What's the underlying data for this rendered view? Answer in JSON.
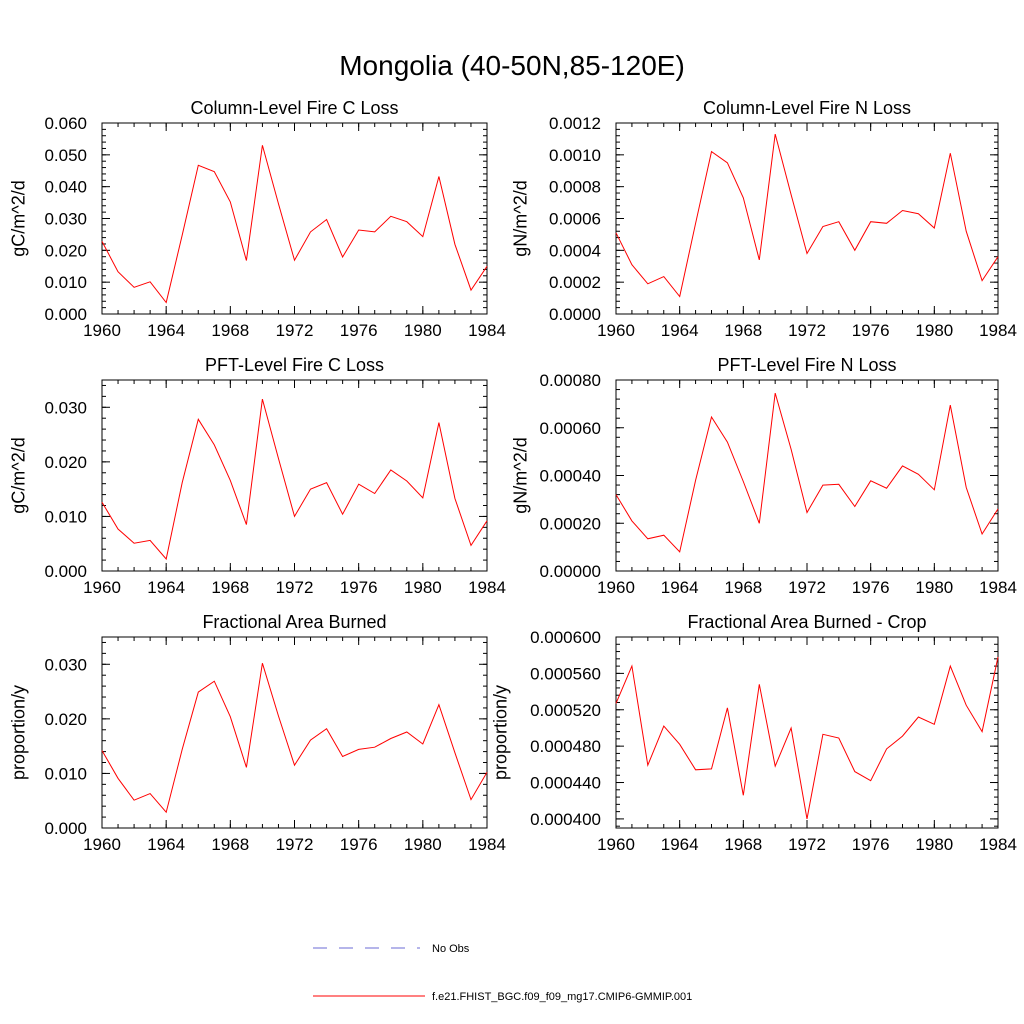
{
  "title": "Mongolia (40-50N,85-120E)",
  "colors": {
    "series": "#ff0000",
    "obs": "#6b6bd6",
    "axis": "#000000"
  },
  "legend": {
    "obs_label": "No Obs",
    "model_label": "f.e21.FHIST_BGC.f09_f09_mg17.CMIP6-GMMIP.001"
  },
  "chart_data": [
    {
      "type": "line",
      "title": "Column-Level Fire C Loss",
      "xlabel": "",
      "ylabel": "gC/m^2/d",
      "xlim": [
        1960,
        1984
      ],
      "ylim": [
        0,
        0.06
      ],
      "xticks": [
        1960,
        1964,
        1968,
        1972,
        1976,
        1980,
        1984
      ],
      "xtick_labels": [
        "1960",
        "1964",
        "1968",
        "1972",
        "1976",
        "1980",
        "1984"
      ],
      "yticks": [
        0,
        0.01,
        0.02,
        0.03,
        0.04,
        0.05,
        0.06
      ],
      "ytick_labels": [
        "0.000",
        "0.010",
        "0.020",
        "0.030",
        "0.040",
        "0.050",
        "0.060"
      ],
      "x": [
        1960,
        1961,
        1962,
        1963,
        1964,
        1965,
        1966,
        1967,
        1968,
        1969,
        1970,
        1971,
        1972,
        1973,
        1974,
        1975,
        1976,
        1977,
        1978,
        1979,
        1980,
        1981,
        1982,
        1983,
        1984
      ],
      "values": [
        0.0228,
        0.0133,
        0.0084,
        0.0101,
        0.0036,
        0.0248,
        0.0467,
        0.0447,
        0.0352,
        0.0168,
        0.053,
        0.0346,
        0.0169,
        0.0258,
        0.0297,
        0.0179,
        0.0264,
        0.0258,
        0.0307,
        0.029,
        0.0243,
        0.0432,
        0.0219,
        0.0075,
        0.015
      ]
    },
    {
      "type": "line",
      "title": "Column-Level Fire N Loss",
      "xlabel": "",
      "ylabel": "gN/m^2/d",
      "xlim": [
        1960,
        1984
      ],
      "ylim": [
        0,
        0.0012
      ],
      "xticks": [
        1960,
        1964,
        1968,
        1972,
        1976,
        1980,
        1984
      ],
      "xtick_labels": [
        "1960",
        "1964",
        "1968",
        "1972",
        "1976",
        "1980",
        "1984"
      ],
      "yticks": [
        0,
        0.0002,
        0.0004,
        0.0006,
        0.0008,
        0.001,
        0.0012
      ],
      "ytick_labels": [
        "0.0000",
        "0.0002",
        "0.0004",
        "0.0006",
        "0.0008",
        "0.0010",
        "0.0012"
      ],
      "x": [
        1960,
        1961,
        1962,
        1963,
        1964,
        1965,
        1966,
        1967,
        1968,
        1969,
        1970,
        1971,
        1972,
        1973,
        1974,
        1975,
        1976,
        1977,
        1978,
        1979,
        1980,
        1981,
        1982,
        1983,
        1984
      ],
      "values": [
        0.00051,
        0.00031,
        0.00019,
        0.000235,
        0.00011,
        0.00057,
        0.00102,
        0.00095,
        0.00073,
        0.00034,
        0.00113,
        0.00075,
        0.00038,
        0.00055,
        0.00058,
        0.0004,
        0.00058,
        0.00057,
        0.00065,
        0.00063,
        0.00054,
        0.00101,
        0.00052,
        0.00021,
        0.00036
      ]
    },
    {
      "type": "line",
      "title": "PFT-Level Fire C Loss",
      "xlabel": "",
      "ylabel": "gC/m^2/d",
      "xlim": [
        1960,
        1984
      ],
      "ylim": [
        0,
        0.035
      ],
      "xticks": [
        1960,
        1964,
        1968,
        1972,
        1976,
        1980,
        1984
      ],
      "xtick_labels": [
        "1960",
        "1964",
        "1968",
        "1972",
        "1976",
        "1980",
        "1984"
      ],
      "yticks": [
        0,
        0.01,
        0.02,
        0.03
      ],
      "ytick_labels": [
        "0.000",
        "0.010",
        "0.020",
        "0.030"
      ],
      "x": [
        1960,
        1961,
        1962,
        1963,
        1964,
        1965,
        1966,
        1967,
        1968,
        1969,
        1970,
        1971,
        1972,
        1973,
        1974,
        1975,
        1976,
        1977,
        1978,
        1979,
        1980,
        1981,
        1982,
        1983,
        1984
      ],
      "values": [
        0.0126,
        0.0077,
        0.0051,
        0.0056,
        0.0022,
        0.0162,
        0.0278,
        0.0231,
        0.0166,
        0.0085,
        0.0315,
        0.0206,
        0.01,
        0.015,
        0.0162,
        0.0104,
        0.0159,
        0.0142,
        0.0185,
        0.0165,
        0.0134,
        0.0272,
        0.0133,
        0.0047,
        0.0092
      ]
    },
    {
      "type": "line",
      "title": "PFT-Level Fire N Loss",
      "xlabel": "",
      "ylabel": "gN/m^2/d",
      "xlim": [
        1960,
        1984
      ],
      "ylim": [
        0,
        0.0008
      ],
      "xticks": [
        1960,
        1964,
        1968,
        1972,
        1976,
        1980,
        1984
      ],
      "xtick_labels": [
        "1960",
        "1964",
        "1968",
        "1972",
        "1976",
        "1980",
        "1984"
      ],
      "yticks": [
        0,
        0.0002,
        0.0004,
        0.0006,
        0.0008
      ],
      "ytick_labels": [
        "0.00000",
        "0.00020",
        "0.00040",
        "0.00060",
        "0.00080"
      ],
      "x": [
        1960,
        1961,
        1962,
        1963,
        1964,
        1965,
        1966,
        1967,
        1968,
        1969,
        1970,
        1971,
        1972,
        1973,
        1974,
        1975,
        1976,
        1977,
        1978,
        1979,
        1980,
        1981,
        1982,
        1983,
        1984
      ],
      "values": [
        0.00032,
        0.00021,
        0.000135,
        0.00015,
        8e-05,
        0.00038,
        0.000645,
        0.00054,
        0.000375,
        0.0002,
        0.000745,
        0.00051,
        0.000245,
        0.00036,
        0.000363,
        0.00027,
        0.000378,
        0.000347,
        0.00044,
        0.000405,
        0.00034,
        0.000695,
        0.00035,
        0.000155,
        0.00026
      ]
    },
    {
      "type": "line",
      "title": "Fractional Area Burned",
      "xlabel": "",
      "ylabel": "proportion/y",
      "xlim": [
        1960,
        1984
      ],
      "ylim": [
        0,
        0.035
      ],
      "xticks": [
        1960,
        1964,
        1968,
        1972,
        1976,
        1980,
        1984
      ],
      "xtick_labels": [
        "1960",
        "1964",
        "1968",
        "1972",
        "1976",
        "1980",
        "1984"
      ],
      "yticks": [
        0,
        0.01,
        0.02,
        0.03
      ],
      "ytick_labels": [
        "0.000",
        "0.010",
        "0.020",
        "0.030"
      ],
      "x": [
        1960,
        1961,
        1962,
        1963,
        1964,
        1965,
        1966,
        1967,
        1968,
        1969,
        1970,
        1971,
        1972,
        1973,
        1974,
        1975,
        1976,
        1977,
        1978,
        1979,
        1980,
        1981,
        1982,
        1983,
        1984
      ],
      "values": [
        0.0142,
        0.0091,
        0.0051,
        0.0063,
        0.0029,
        0.0144,
        0.0249,
        0.0269,
        0.0204,
        0.0111,
        0.0302,
        0.0205,
        0.0115,
        0.0161,
        0.0182,
        0.0131,
        0.0144,
        0.0148,
        0.0164,
        0.0176,
        0.0154,
        0.0226,
        0.0138,
        0.0052,
        0.0102
      ]
    },
    {
      "type": "line",
      "title": "Fractional Area Burned - Crop",
      "xlabel": "",
      "ylabel": "proportion/y",
      "xlim": [
        1960,
        1984
      ],
      "ylim": [
        0.00039,
        0.0006
      ],
      "xticks": [
        1960,
        1964,
        1968,
        1972,
        1976,
        1980,
        1984
      ],
      "xtick_labels": [
        "1960",
        "1964",
        "1968",
        "1972",
        "1976",
        "1980",
        "1984"
      ],
      "yticks": [
        0.0004,
        0.00044,
        0.00048,
        0.00052,
        0.00056,
        0.0006
      ],
      "ytick_labels": [
        "0.000400",
        "0.000440",
        "0.000480",
        "0.000520",
        "0.000560",
        "0.000600"
      ],
      "x": [
        1960,
        1961,
        1962,
        1963,
        1964,
        1965,
        1966,
        1967,
        1968,
        1969,
        1970,
        1971,
        1972,
        1973,
        1974,
        1975,
        1976,
        1977,
        1978,
        1979,
        1980,
        1981,
        1982,
        1983,
        1984
      ],
      "values": [
        0.000527,
        0.000568,
        0.000459,
        0.000502,
        0.000482,
        0.000454,
        0.000455,
        0.000522,
        0.000426,
        0.000548,
        0.000458,
        0.0005,
        0.0004,
        0.000493,
        0.000489,
        0.000452,
        0.000442,
        0.000477,
        0.000491,
        0.000512,
        0.000504,
        0.000568,
        0.000525,
        0.000496,
        0.000578
      ]
    }
  ]
}
